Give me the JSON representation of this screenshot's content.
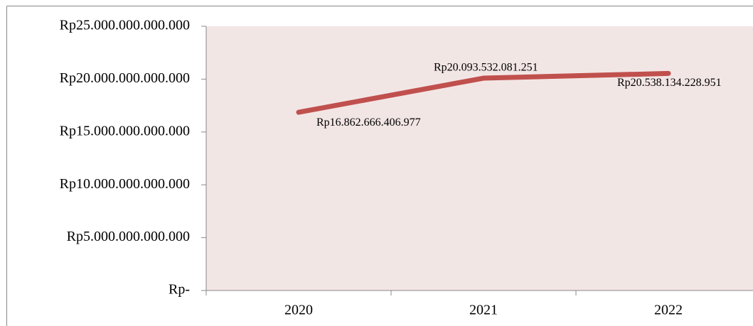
{
  "chart_data": {
    "type": "line",
    "categories": [
      "2020",
      "2021",
      "2022"
    ],
    "series": [
      {
        "color": "#c0504d",
        "values": [
          16862666406977,
          20093532081251,
          20538134228951
        ],
        "value_labels": [
          "Rp16.862.666.406.977",
          "Rp20.093.532.081.251",
          "Rp20.538.134.228.951"
        ]
      }
    ],
    "ylim": [
      0,
      25000000000000
    ],
    "yticks": [
      {
        "value": 0,
        "label": "Rp-"
      },
      {
        "value": 5000000000000,
        "label": "Rp5.000.000.000.000"
      },
      {
        "value": 10000000000000,
        "label": "Rp10.000.000.000.000"
      },
      {
        "value": 15000000000000,
        "label": "Rp15.000.000.000.000"
      },
      {
        "value": 20000000000000,
        "label": "Rp20.000.000.000.000"
      },
      {
        "value": 25000000000000,
        "label": "Rp25.000.000.000.000"
      }
    ],
    "plot_background": "#f2e6e5"
  }
}
